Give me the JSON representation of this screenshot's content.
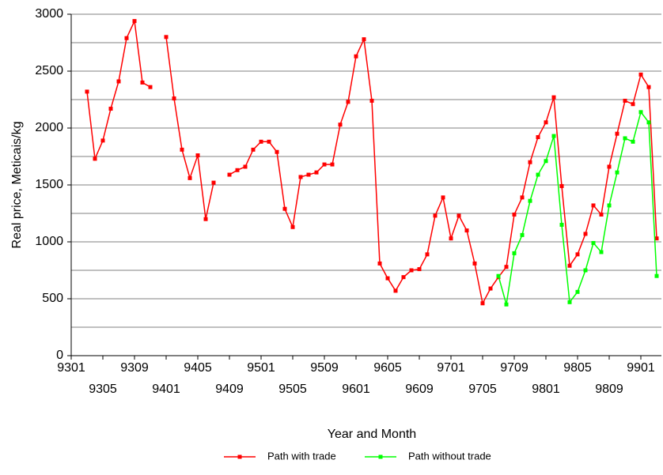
{
  "chart_data": {
    "type": "line",
    "y_label": "Real price, Meticais/kg",
    "x_label": "Year and Month",
    "categories": [
      "9301",
      null,
      null,
      null,
      "9305",
      null,
      null,
      null,
      "9309",
      null,
      null,
      null,
      "9401",
      null,
      null,
      null,
      "9405",
      null,
      null,
      null,
      "9409",
      null,
      null,
      null,
      "9501",
      null,
      null,
      null,
      "9505",
      null,
      null,
      null,
      "9509",
      null,
      null,
      null,
      "9601",
      null,
      null,
      null,
      "9605",
      null,
      null,
      null,
      "9609",
      null,
      null,
      null,
      "9701",
      null,
      null,
      null,
      "9705",
      null,
      null,
      null,
      "9709",
      null,
      null,
      null,
      "9801",
      null,
      null,
      null,
      "9805",
      null,
      null,
      null,
      "9809",
      null,
      null,
      null,
      "9901",
      null,
      null
    ],
    "series": [
      {
        "name": "Path with trade",
        "color": "#ff0000",
        "values": [
          null,
          null,
          2320,
          1730,
          1890,
          2170,
          2410,
          2790,
          2940,
          2400,
          2360,
          null,
          2800,
          2260,
          1810,
          1560,
          1760,
          1200,
          1520,
          null,
          1590,
          1630,
          1660,
          1810,
          1880,
          1880,
          1790,
          1290,
          1130,
          1570,
          1590,
          1610,
          1680,
          1680,
          2030,
          2230,
          2630,
          2780,
          2240,
          810,
          680,
          570,
          690,
          750,
          760,
          890,
          1230,
          1390,
          1030,
          1230,
          1100,
          810,
          460,
          590,
          690,
          780,
          1240,
          1390,
          1700,
          1920,
          2050,
          2270,
          1490,
          790,
          890,
          1070,
          1320,
          1240,
          1660,
          1950,
          2240,
          2210,
          2470,
          2360,
          1030
        ]
      },
      {
        "name": "Path without trade",
        "color": "#00ff00",
        "values": [
          null,
          null,
          null,
          null,
          null,
          null,
          null,
          null,
          null,
          null,
          null,
          null,
          null,
          null,
          null,
          null,
          null,
          null,
          null,
          null,
          null,
          null,
          null,
          null,
          null,
          null,
          null,
          null,
          null,
          null,
          null,
          null,
          null,
          null,
          null,
          null,
          null,
          null,
          null,
          null,
          null,
          null,
          null,
          null,
          null,
          null,
          null,
          null,
          null,
          null,
          null,
          null,
          null,
          null,
          700,
          450,
          900,
          1060,
          1360,
          1590,
          1710,
          1930,
          1150,
          470,
          560,
          750,
          990,
          910,
          1320,
          1610,
          1910,
          1880,
          2140,
          2050,
          700
        ]
      }
    ],
    "ylim": [
      0,
      3000
    ],
    "yticks": [
      0,
      500,
      1000,
      1500,
      2000,
      2500,
      3000
    ],
    "ygrid": [
      250,
      500,
      750,
      1000,
      1250,
      1500,
      1750,
      2000,
      2250,
      2500,
      2750,
      3000
    ],
    "legend": "bottom"
  }
}
